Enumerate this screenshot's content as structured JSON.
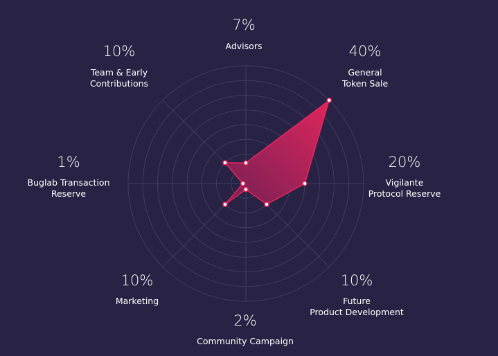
{
  "chart_data": {
    "type": "radar",
    "categories": [
      "Advisors",
      "General\nToken Sale",
      "Vigilante\nProtocol Reserve",
      "Future\nProduct Development",
      "Community Campaign",
      "Marketing",
      "Buglab Transaction\nReserve",
      "Team & Early\nContributions"
    ],
    "values": [
      7,
      40,
      20,
      10,
      2,
      10,
      1,
      10
    ],
    "value_labels": [
      "7%",
      "40%",
      "20%",
      "10%",
      "2%",
      "10%",
      "1%",
      "10%"
    ],
    "rlim": [
      0,
      40
    ],
    "rticks": [
      5,
      10,
      15,
      20,
      25,
      30,
      35,
      40
    ],
    "color": "#e8265e",
    "grid": true
  }
}
